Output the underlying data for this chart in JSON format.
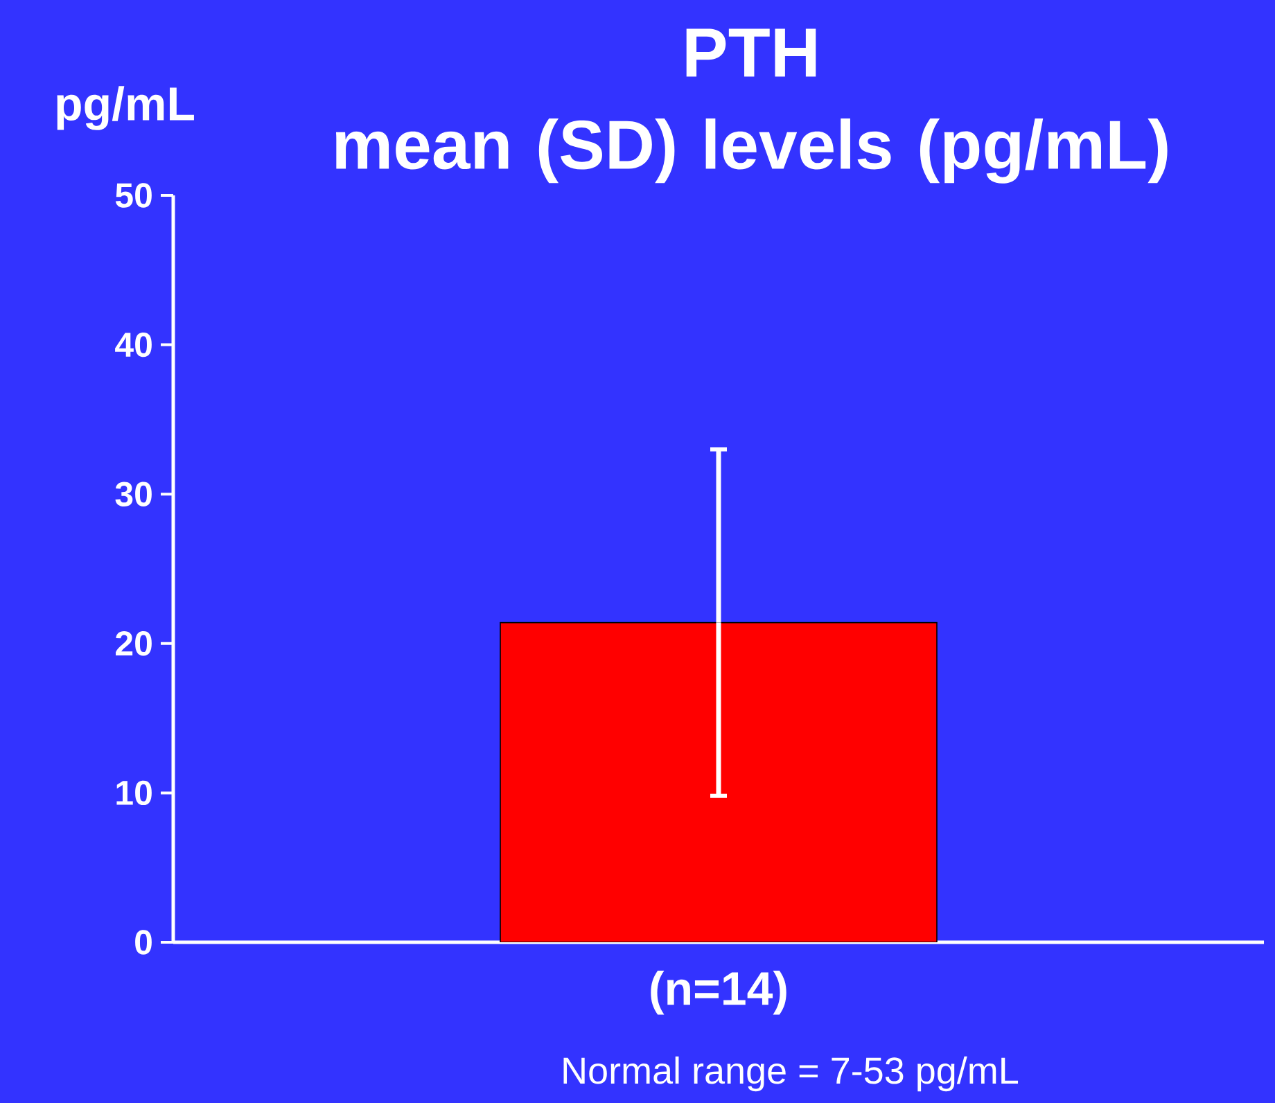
{
  "chart_data": {
    "type": "bar",
    "title": "PTH",
    "subtitle": "mean (SD) levels (pg/mL)",
    "ylabel": "pg/mL",
    "categories": [
      "(n=14)"
    ],
    "values": [
      21.4
    ],
    "errors": [
      11.6
    ],
    "color": "#ff0000",
    "ylim": [
      0,
      50
    ],
    "yticks": [
      0,
      10,
      20,
      30,
      40,
      50
    ],
    "annotations": [
      "Normal range = 7-53 pg/mL"
    ]
  }
}
